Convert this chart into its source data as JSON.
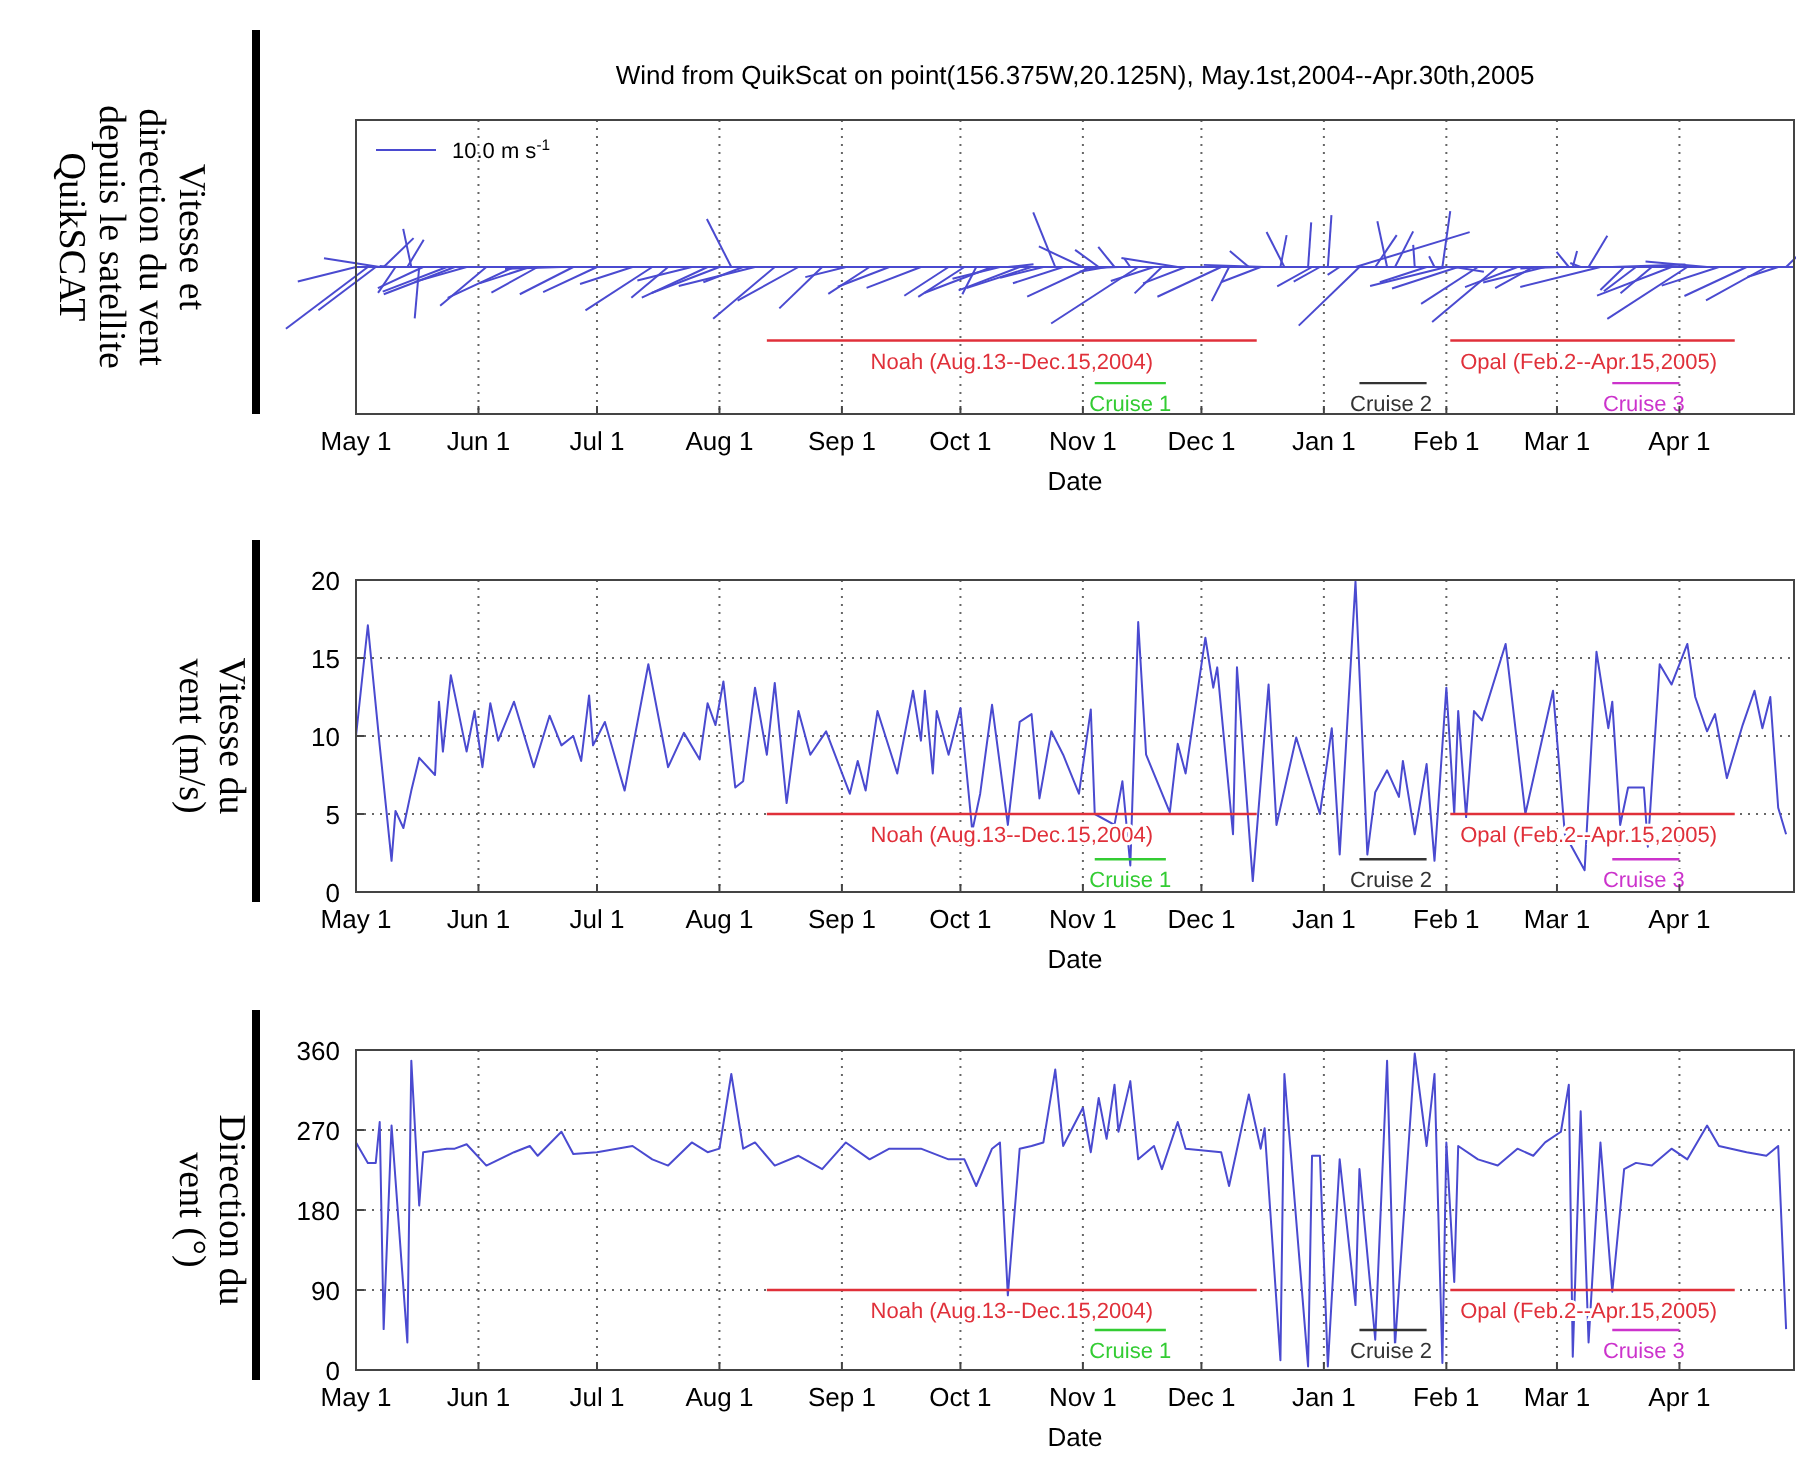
{
  "chart_data": [
    {
      "type": "other",
      "title": "Wind from QuikScat on point(156.375W,20.125N), May.1st,2004--Apr.30th,2005",
      "xlabel": "Date",
      "ylabel": "Vitesse et\ndirection du vent\ndepuis le satellite\nQuikSCAT",
      "categories": [
        "May 1",
        "Jun 1",
        "Jul 1",
        "Aug 1",
        "Sep 1",
        "Oct 1",
        "Nov 1",
        "Dec 1",
        "Jan 1",
        "Feb 1",
        "Mar 1",
        "Apr 1"
      ],
      "annotations": [
        "10.0 m s$^{-1}$",
        "Noah (Aug.13--Dec.15,2004)",
        "Cruise 1",
        "Cruise 2",
        "Opal (Feb.2--Apr.15,2005)",
        "Cruise 3"
      ]
    },
    {
      "type": "line",
      "xlabel": "Date",
      "ylabel": "Vitesse du\nvent (m/s)",
      "xlim": [
        "2004-05-01",
        "2005-04-30"
      ],
      "xticks": [
        {
          "value": "2004-05-01",
          "label": "May 1"
        },
        {
          "value": "2004-06-01",
          "label": "Jun 1"
        },
        {
          "value": "2004-07-01",
          "label": "Jul 1"
        },
        {
          "value": "2004-08-01",
          "label": "Aug 1"
        },
        {
          "value": "2004-09-01",
          "label": "Sep 1"
        },
        {
          "value": "2004-10-01",
          "label": "Oct 1"
        },
        {
          "value": "2004-11-01",
          "label": "Nov 1"
        },
        {
          "value": "2004-12-01",
          "label": "Dec 1"
        },
        {
          "value": "2005-01-01",
          "label": "Jan 1"
        },
        {
          "value": "2005-02-01",
          "label": "Feb 1"
        },
        {
          "value": "2005-03-01",
          "label": "Mar 1"
        },
        {
          "value": "2005-04-01",
          "label": "Apr 1"
        }
      ],
      "ylim": [
        0,
        20
      ],
      "yticks": [
        0,
        5,
        10,
        15,
        20
      ],
      "grid": true,
      "x": [
        "2004-05-01",
        "2004-05-04",
        "2004-05-07",
        "2004-05-10",
        "2004-05-11",
        "2004-05-13",
        "2004-05-15",
        "2004-05-17",
        "2004-05-21",
        "2004-05-22",
        "2004-05-23",
        "2004-05-25",
        "2004-05-29",
        "2004-05-31",
        "2004-06-02",
        "2004-06-04",
        "2004-06-06",
        "2004-06-10",
        "2004-06-15",
        "2004-06-19",
        "2004-06-22",
        "2004-06-25",
        "2004-06-27",
        "2004-06-29",
        "2004-06-30",
        "2004-07-03",
        "2004-07-08",
        "2004-07-14",
        "2004-07-19",
        "2004-07-23",
        "2004-07-27",
        "2004-07-29",
        "2004-07-31",
        "2004-08-02",
        "2004-08-05",
        "2004-08-07",
        "2004-08-10",
        "2004-08-13",
        "2004-08-15",
        "2004-08-18",
        "2004-08-21",
        "2004-08-24",
        "2004-08-28",
        "2004-09-03",
        "2004-09-05",
        "2004-09-07",
        "2004-09-10",
        "2004-09-15",
        "2004-09-19",
        "2004-09-21",
        "2004-09-22",
        "2004-09-24",
        "2004-09-25",
        "2004-09-28",
        "2004-10-01",
        "2004-10-04",
        "2004-10-06",
        "2004-10-09",
        "2004-10-13",
        "2004-10-16",
        "2004-10-19",
        "2004-10-21",
        "2004-10-24",
        "2004-10-27",
        "2004-10-31",
        "2004-11-03",
        "2004-11-04",
        "2004-11-09",
        "2004-11-11",
        "2004-11-13",
        "2004-11-15",
        "2004-11-17",
        "2004-11-23",
        "2004-11-25",
        "2004-11-27",
        "2004-12-02",
        "2004-12-04",
        "2004-12-05",
        "2004-12-09",
        "2004-12-10",
        "2004-12-14",
        "2004-12-18",
        "2004-12-20",
        "2004-12-25",
        "2004-12-31",
        "2005-01-03",
        "2005-01-05",
        "2005-01-09",
        "2005-01-12",
        "2005-01-14",
        "2005-01-17",
        "2005-01-20",
        "2005-01-21",
        "2005-01-24",
        "2005-01-27",
        "2005-01-29",
        "2005-02-01",
        "2005-02-03",
        "2005-02-04",
        "2005-02-06",
        "2005-02-08",
        "2005-02-10",
        "2005-02-16",
        "2005-02-21",
        "2005-02-28",
        "2005-03-03",
        "2005-03-08",
        "2005-03-11",
        "2005-03-14",
        "2005-03-15",
        "2005-03-17",
        "2005-03-19",
        "2005-03-23",
        "2005-03-24",
        "2005-03-27",
        "2005-03-30",
        "2005-04-03",
        "2005-04-05",
        "2005-04-08",
        "2005-04-10",
        "2005-04-13",
        "2005-04-17",
        "2005-04-20",
        "2005-04-22",
        "2005-04-24",
        "2005-04-26",
        "2005-04-28"
      ],
      "series": [
        {
          "color": "#4a4ad0",
          "values": [
            10,
            17.1,
            9.4,
            2,
            5.2,
            4.1,
            6.5,
            8.6,
            7.5,
            12.2,
            9,
            13.9,
            9,
            11.6,
            8,
            12.1,
            9.7,
            12.2,
            8,
            11.3,
            9.4,
            10,
            8.4,
            12.6,
            9.4,
            10.9,
            6.5,
            14.6,
            8,
            10.2,
            8.5,
            12.1,
            10.7,
            13.5,
            6.7,
            7.1,
            13.1,
            8.8,
            13.4,
            5.7,
            11.6,
            8.8,
            10.3,
            6.3,
            8.4,
            6.5,
            11.6,
            7.6,
            12.9,
            9.7,
            12.9,
            7.6,
            11.6,
            8.8,
            11.8,
            3.9,
            6.3,
            12,
            4.3,
            10.9,
            11.4,
            6,
            10.3,
            8.8,
            6.3,
            11.7,
            5,
            4.3,
            7.1,
            1.7,
            17.3,
            8.8,
            5.1,
            9.5,
            7.6,
            16.3,
            13.1,
            14.4,
            3.7,
            14.4,
            0.7,
            13.3,
            4.3,
            9.9,
            5,
            10.5,
            2.4,
            19.9,
            2.4,
            6.4,
            7.8,
            6.1,
            8.4,
            3.7,
            8.2,
            2,
            13.1,
            5,
            11.6,
            4.8,
            11.6,
            11,
            15.9,
            5,
            12.9,
            3.7,
            1.4,
            15.4,
            10.5,
            12.2,
            4.3,
            6.7,
            6.7,
            2.9,
            14.6,
            13.3,
            15.9,
            12.5,
            10.3,
            11.4,
            7.3,
            10.7,
            12.9,
            10.5,
            12.5,
            5.4,
            3.7
          ]
        },
        {
          "color": "#e0303a",
          "x": [
            "2004-08-13",
            "2004-12-15"
          ],
          "values": [
            5,
            5
          ]
        },
        {
          "color": "#33cc33",
          "x": [
            "2004-11-04",
            "2004-11-22"
          ],
          "values": [
            2.1,
            2.1
          ]
        },
        {
          "color": "#333333",
          "x": [
            "2005-01-10",
            "2005-01-27"
          ],
          "values": [
            2.1,
            2.1
          ]
        },
        {
          "color": "#e0303a",
          "x": [
            "2005-02-02",
            "2005-04-15"
          ],
          "values": [
            5,
            5
          ]
        },
        {
          "color": "#cc33cc",
          "x": [
            "2005-03-15",
            "2005-04-01"
          ],
          "values": [
            2.1,
            2.1
          ]
        }
      ],
      "annotations": [
        {
          "text": "Noah (Aug.13--Dec.15,2004)",
          "x": "2004-10-14",
          "y": 5
        },
        {
          "text": "Cruise 1",
          "x": "2004-11-13",
          "y": 2.1
        },
        {
          "text": "Cruise 2",
          "x": "2005-01-18",
          "y": 2.1
        },
        {
          "text": "Opal (Feb.2--Apr.15,2005)",
          "x": "2005-03-09",
          "y": 5
        },
        {
          "text": "Cruise 3",
          "x": "2005-03-23",
          "y": 2.1
        }
      ]
    },
    {
      "type": "line",
      "xlabel": "Date",
      "ylabel": "Direction du\nvent (°)",
      "xlim": [
        "2004-05-01",
        "2005-04-30"
      ],
      "xticks": [
        {
          "value": "2004-05-01",
          "label": "May 1"
        },
        {
          "value": "2004-06-01",
          "label": "Jun 1"
        },
        {
          "value": "2004-07-01",
          "label": "Jul 1"
        },
        {
          "value": "2004-08-01",
          "label": "Aug 1"
        },
        {
          "value": "2004-09-01",
          "label": "Sep 1"
        },
        {
          "value": "2004-10-01",
          "label": "Oct 1"
        },
        {
          "value": "2004-11-01",
          "label": "Nov 1"
        },
        {
          "value": "2004-12-01",
          "label": "Dec 1"
        },
        {
          "value": "2005-01-01",
          "label": "Jan 1"
        },
        {
          "value": "2005-02-01",
          "label": "Feb 1"
        },
        {
          "value": "2005-03-01",
          "label": "Mar 1"
        },
        {
          "value": "2005-04-01",
          "label": "Apr 1"
        }
      ],
      "ylim": [
        0,
        360
      ],
      "yticks": [
        0,
        90,
        180,
        270,
        360
      ],
      "grid": true,
      "x": [
        "2004-05-01",
        "2004-05-04",
        "2004-05-06",
        "2004-05-07",
        "2004-05-08",
        "2004-05-10",
        "2004-05-11",
        "2004-05-14",
        "2004-05-15",
        "2004-05-17",
        "2004-05-18",
        "2004-05-24",
        "2004-05-26",
        "2004-05-29",
        "2004-06-03",
        "2004-06-10",
        "2004-06-14",
        "2004-06-16",
        "2004-06-22",
        "2004-06-25",
        "2004-07-01",
        "2004-07-10",
        "2004-07-15",
        "2004-07-19",
        "2004-07-25",
        "2004-07-29",
        "2004-08-01",
        "2004-08-04",
        "2004-08-07",
        "2004-08-10",
        "2004-08-15",
        "2004-08-21",
        "2004-08-27",
        "2004-09-02",
        "2004-09-08",
        "2004-09-13",
        "2004-09-21",
        "2004-09-28",
        "2004-10-02",
        "2004-10-05",
        "2004-10-09",
        "2004-10-11",
        "2004-10-13",
        "2004-10-16",
        "2004-10-19",
        "2004-10-22",
        "2004-10-25",
        "2004-10-27",
        "2004-11-01",
        "2004-11-03",
        "2004-11-05",
        "2004-11-07",
        "2004-11-09",
        "2004-11-10",
        "2004-11-13",
        "2004-11-15",
        "2004-11-19",
        "2004-11-21",
        "2004-11-25",
        "2004-11-27",
        "2004-12-06",
        "2004-12-08",
        "2004-12-13",
        "2004-12-16",
        "2004-12-17",
        "2004-12-21",
        "2004-12-22",
        "2004-12-28",
        "2004-12-29",
        "2004-12-31",
        "2005-01-02",
        "2005-01-05",
        "2005-01-09",
        "2005-01-10",
        "2005-01-14",
        "2005-01-17",
        "2005-01-19",
        "2005-01-24",
        "2005-01-27",
        "2005-01-29",
        "2005-01-31",
        "2005-02-01",
        "2005-02-03",
        "2005-02-04",
        "2005-02-09",
        "2005-02-14",
        "2005-02-19",
        "2005-02-23",
        "2005-02-26",
        "2005-03-02",
        "2005-03-04",
        "2005-03-05",
        "2005-03-07",
        "2005-03-09",
        "2005-03-12",
        "2005-03-15",
        "2005-03-18",
        "2005-03-21",
        "2005-03-25",
        "2005-03-30",
        "2005-04-03",
        "2005-04-08",
        "2005-04-11",
        "2005-04-18",
        "2005-04-23",
        "2005-04-26",
        "2005-04-28"
      ],
      "series": [
        {
          "color": "#4a4ad0",
          "values": [
            256,
            233,
            233,
            279,
            46,
            275,
            214,
            31,
            348,
            185,
            245,
            249,
            249,
            254,
            230,
            245,
            252,
            241,
            268,
            243,
            245,
            252,
            237,
            230,
            256,
            245,
            249,
            333,
            249,
            256,
            230,
            241,
            226,
            256,
            237,
            249,
            249,
            237,
            237,
            207,
            249,
            256,
            84,
            249,
            252,
            256,
            338,
            252,
            295,
            245,
            306,
            260,
            321,
            268,
            325,
            237,
            252,
            226,
            279,
            249,
            245,
            207,
            310,
            249,
            272,
            11,
            333,
            4,
            241,
            241,
            4,
            237,
            73,
            226,
            34,
            348,
            27,
            356,
            252,
            333,
            8,
            256,
            99,
            252,
            237,
            230,
            249,
            241,
            256,
            268,
            321,
            15,
            291,
            31,
            256,
            88,
            226,
            233,
            230,
            249,
            237,
            275,
            252,
            245,
            241,
            252,
            46
          ]
        },
        {
          "color": "#e0303a",
          "x": [
            "2004-08-13",
            "2004-12-15"
          ],
          "values": [
            90,
            90
          ]
        },
        {
          "color": "#33cc33",
          "x": [
            "2004-11-04",
            "2004-11-22"
          ],
          "values": [
            45,
            45
          ]
        },
        {
          "color": "#333333",
          "x": [
            "2005-01-10",
            "2005-01-27"
          ],
          "values": [
            45,
            45
          ]
        },
        {
          "color": "#e0303a",
          "x": [
            "2005-02-02",
            "2005-04-15"
          ],
          "values": [
            90,
            90
          ]
        },
        {
          "color": "#cc33cc",
          "x": [
            "2005-03-15",
            "2005-04-01"
          ],
          "values": [
            45,
            45
          ]
        }
      ],
      "annotations": [
        {
          "text": "Noah (Aug.13--Dec.15,2004)",
          "x": "2004-10-14",
          "y": 90
        },
        {
          "text": "Cruise 1",
          "x": "2004-11-13",
          "y": 45
        },
        {
          "text": "Cruise 2",
          "x": "2005-01-18",
          "y": 45
        },
        {
          "text": "Opal (Feb.2--Apr.15,2005)",
          "x": "2005-03-09",
          "y": 90
        },
        {
          "text": "Cruise 3",
          "x": "2005-03-23",
          "y": 45
        }
      ]
    }
  ]
}
